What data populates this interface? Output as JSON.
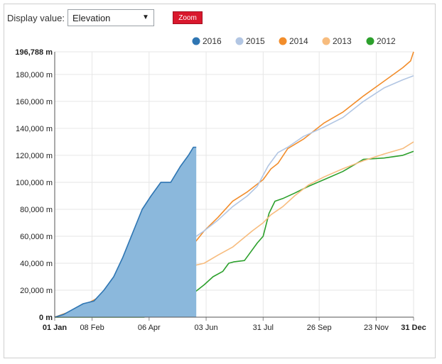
{
  "controls": {
    "display_label": "Display value:",
    "display_value": "Elevation",
    "zoom_label": "Zoom"
  },
  "chart_data": {
    "type": "area",
    "xlabel": "",
    "ylabel": "",
    "x_domain": [
      "2016-01-01",
      "2016-12-31"
    ],
    "ylim": [
      0,
      196788
    ],
    "y_ticks": [
      {
        "value": 0,
        "label": "0 m",
        "bold": true
      },
      {
        "value": 20000,
        "label": "20,000 m"
      },
      {
        "value": 40000,
        "label": "40,000 m"
      },
      {
        "value": 60000,
        "label": "60,000 m"
      },
      {
        "value": 80000,
        "label": "80,000 m"
      },
      {
        "value": 100000,
        "label": "100,000 m"
      },
      {
        "value": 120000,
        "label": "120,000 m"
      },
      {
        "value": 140000,
        "label": "140,000 m"
      },
      {
        "value": 160000,
        "label": "160,000 m"
      },
      {
        "value": 180000,
        "label": "180,000 m"
      },
      {
        "value": 196788,
        "label": "196,788 m",
        "bold": true
      }
    ],
    "x_ticks": [
      {
        "date": "2016-01-01",
        "label": "01 Jan",
        "bold": true
      },
      {
        "date": "2016-02-08",
        "label": "08 Feb"
      },
      {
        "date": "2016-04-06",
        "label": "06 Apr"
      },
      {
        "date": "2016-06-03",
        "label": "03 Jun"
      },
      {
        "date": "2016-07-31",
        "label": "31 Jul"
      },
      {
        "date": "2016-09-26",
        "label": "26 Sep"
      },
      {
        "date": "2016-11-23",
        "label": "23 Nov"
      },
      {
        "date": "2016-12-31",
        "label": "31 Dec",
        "bold": true
      }
    ],
    "legend_position": "top-right",
    "series": [
      {
        "name": "2012",
        "color": "#2ca02c",
        "fill": false,
        "points": [
          [
            "2016-01-01",
            0
          ],
          [
            "2016-03-01",
            0
          ],
          [
            "2016-04-01",
            0
          ],
          [
            "2016-04-08",
            4000
          ],
          [
            "2016-04-20",
            6000
          ],
          [
            "2016-05-01",
            9000
          ],
          [
            "2016-05-12",
            12000
          ],
          [
            "2016-05-18",
            16000
          ],
          [
            "2016-05-25",
            20000
          ],
          [
            "2016-06-01",
            24000
          ],
          [
            "2016-06-10",
            30000
          ],
          [
            "2016-06-20",
            34000
          ],
          [
            "2016-06-26",
            40000
          ],
          [
            "2016-07-01",
            41000
          ],
          [
            "2016-07-12",
            42000
          ],
          [
            "2016-07-18",
            48000
          ],
          [
            "2016-07-25",
            55000
          ],
          [
            "2016-07-31",
            60000
          ],
          [
            "2016-08-06",
            77000
          ],
          [
            "2016-08-12",
            86000
          ],
          [
            "2016-08-20",
            88000
          ],
          [
            "2016-09-01",
            92000
          ],
          [
            "2016-09-15",
            97000
          ],
          [
            "2016-10-01",
            102000
          ],
          [
            "2016-10-20",
            108000
          ],
          [
            "2016-11-10",
            117000
          ],
          [
            "2016-12-01",
            118000
          ],
          [
            "2016-12-20",
            120000
          ],
          [
            "2016-12-31",
            123000
          ]
        ]
      },
      {
        "name": "2013",
        "color": "#f7bc7e",
        "fill": false,
        "points": [
          [
            "2016-01-01",
            0
          ],
          [
            "2016-01-20",
            4000
          ],
          [
            "2016-02-08",
            9000
          ],
          [
            "2016-02-28",
            15000
          ],
          [
            "2016-03-20",
            22000
          ],
          [
            "2016-04-10",
            28000
          ],
          [
            "2016-05-01",
            35000
          ],
          [
            "2016-05-20",
            38000
          ],
          [
            "2016-06-01",
            40000
          ],
          [
            "2016-06-15",
            46000
          ],
          [
            "2016-06-30",
            52000
          ],
          [
            "2016-07-10",
            58000
          ],
          [
            "2016-07-20",
            64000
          ],
          [
            "2016-07-31",
            70000
          ],
          [
            "2016-08-08",
            76000
          ],
          [
            "2016-08-20",
            82000
          ],
          [
            "2016-09-01",
            90000
          ],
          [
            "2016-09-15",
            98000
          ],
          [
            "2016-10-01",
            104000
          ],
          [
            "2016-10-20",
            110000
          ],
          [
            "2016-11-10",
            116000
          ],
          [
            "2016-12-01",
            121000
          ],
          [
            "2016-12-20",
            125000
          ],
          [
            "2016-12-31",
            130000
          ]
        ]
      },
      {
        "name": "2014",
        "color": "#f28d2b",
        "fill": false,
        "points": [
          [
            "2016-01-01",
            0
          ],
          [
            "2016-01-20",
            5000
          ],
          [
            "2016-02-08",
            12000
          ],
          [
            "2016-02-28",
            20000
          ],
          [
            "2016-03-20",
            28000
          ],
          [
            "2016-04-10",
            36000
          ],
          [
            "2016-05-01",
            44000
          ],
          [
            "2016-05-20",
            53000
          ],
          [
            "2016-06-01",
            64000
          ],
          [
            "2016-06-15",
            74000
          ],
          [
            "2016-06-30",
            86000
          ],
          [
            "2016-07-15",
            93000
          ],
          [
            "2016-07-31",
            102000
          ],
          [
            "2016-08-08",
            110000
          ],
          [
            "2016-08-15",
            114000
          ],
          [
            "2016-08-25",
            125000
          ],
          [
            "2016-09-10",
            132000
          ],
          [
            "2016-10-01",
            144000
          ],
          [
            "2016-10-20",
            152000
          ],
          [
            "2016-11-10",
            164000
          ],
          [
            "2016-12-01",
            175000
          ],
          [
            "2016-12-20",
            185000
          ],
          [
            "2016-12-28",
            190000
          ],
          [
            "2016-12-31",
            196788
          ]
        ]
      },
      {
        "name": "2015",
        "color": "#b2c6e3",
        "fill": false,
        "points": [
          [
            "2016-01-01",
            0
          ],
          [
            "2016-01-20",
            4000
          ],
          [
            "2016-02-08",
            10000
          ],
          [
            "2016-02-28",
            17000
          ],
          [
            "2016-03-20",
            26000
          ],
          [
            "2016-04-10",
            36000
          ],
          [
            "2016-05-01",
            48000
          ],
          [
            "2016-05-20",
            58000
          ],
          [
            "2016-06-01",
            64000
          ],
          [
            "2016-06-15",
            72000
          ],
          [
            "2016-06-30",
            82000
          ],
          [
            "2016-07-15",
            90000
          ],
          [
            "2016-07-25",
            97000
          ],
          [
            "2016-08-05",
            112000
          ],
          [
            "2016-08-15",
            122000
          ],
          [
            "2016-08-25",
            126000
          ],
          [
            "2016-09-10",
            134000
          ],
          [
            "2016-10-01",
            141000
          ],
          [
            "2016-10-20",
            148000
          ],
          [
            "2016-11-10",
            160000
          ],
          [
            "2016-12-01",
            170000
          ],
          [
            "2016-12-20",
            176000
          ],
          [
            "2016-12-31",
            179000
          ]
        ]
      },
      {
        "name": "2016",
        "color": "#2f76b3",
        "fill": true,
        "fill_color": "#8bb8dc",
        "points": [
          [
            "2016-01-01",
            0
          ],
          [
            "2016-01-10",
            2000
          ],
          [
            "2016-01-20",
            6000
          ],
          [
            "2016-01-30",
            10000
          ],
          [
            "2016-02-10",
            12000
          ],
          [
            "2016-02-20",
            20000
          ],
          [
            "2016-03-01",
            30000
          ],
          [
            "2016-03-10",
            44000
          ],
          [
            "2016-03-20",
            62000
          ],
          [
            "2016-03-30",
            80000
          ],
          [
            "2016-04-08",
            90000
          ],
          [
            "2016-04-18",
            100000
          ],
          [
            "2016-04-28",
            100000
          ],
          [
            "2016-05-08",
            112000
          ],
          [
            "2016-05-16",
            120000
          ],
          [
            "2016-05-21",
            126000
          ],
          [
            "2016-05-24",
            126000
          ]
        ]
      }
    ]
  }
}
